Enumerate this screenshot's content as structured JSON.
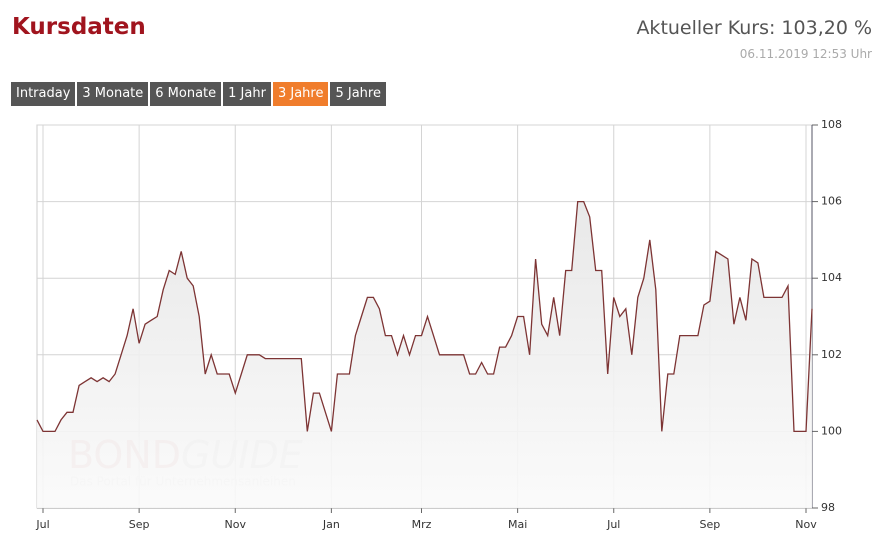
{
  "header": {
    "title": "Kursdaten",
    "price": "Aktueller Kurs: 103,20 %",
    "timestamp": "06.11.2019 12:53 Uhr"
  },
  "tabs": [
    "Intraday",
    "3 Monate",
    "6 Monate",
    "1 Jahr",
    "3 Jahre",
    "5 Jahre"
  ],
  "active_tab": 4,
  "watermark": {
    "brand_left": "BOND",
    "brand_right": "GUIDE",
    "tagline": "Das Portal für Unternehmensanleihen"
  },
  "chart_data": {
    "type": "area",
    "categories": [
      null,
      "Jul",
      null,
      null,
      null,
      null,
      null,
      null,
      null,
      null,
      null,
      null,
      null,
      null,
      null,
      null,
      null,
      "Sep",
      null,
      null,
      null,
      null,
      null,
      null,
      null,
      null,
      null,
      null,
      null,
      null,
      null,
      null,
      null,
      "Nov",
      null,
      null,
      null,
      null,
      null,
      null,
      null,
      null,
      null,
      null,
      null,
      null,
      null,
      null,
      null,
      "Jan",
      null,
      null,
      null,
      null,
      null,
      null,
      null,
      null,
      null,
      null,
      null,
      null,
      null,
      null,
      "Mrz",
      null,
      null,
      null,
      null,
      null,
      null,
      null,
      null,
      null,
      null,
      null,
      null,
      null,
      null,
      null,
      "Mai",
      null,
      null,
      null,
      null,
      null,
      null,
      null,
      null,
      null,
      null,
      null,
      null,
      null,
      null,
      null,
      "Jul",
      null,
      null,
      null,
      null,
      null,
      null,
      null,
      null,
      null,
      null,
      null,
      null,
      null,
      null,
      null,
      "Sep",
      null,
      null,
      null,
      null,
      null,
      null,
      null,
      null,
      null,
      null,
      null,
      null,
      null,
      null,
      null,
      "Nov",
      null
    ],
    "values": [
      100.3,
      100.0,
      100.0,
      100.0,
      100.3,
      100.5,
      100.5,
      101.2,
      101.3,
      101.4,
      101.3,
      101.4,
      101.3,
      101.5,
      102.0,
      102.5,
      103.2,
      102.3,
      102.8,
      102.9,
      103.0,
      103.7,
      104.2,
      104.1,
      104.7,
      104.0,
      103.8,
      103.0,
      101.5,
      102.0,
      101.5,
      101.5,
      101.5,
      101.0,
      101.5,
      102.0,
      102.0,
      102.0,
      101.9,
      101.9,
      101.9,
      101.9,
      101.9,
      101.9,
      101.9,
      100.0,
      101.0,
      101.0,
      100.5,
      100.0,
      101.5,
      101.5,
      101.5,
      102.5,
      103.0,
      103.5,
      103.5,
      103.2,
      102.5,
      102.5,
      102.0,
      102.5,
      102.0,
      102.5,
      102.5,
      103.0,
      102.5,
      102.0,
      102.0,
      102.0,
      102.0,
      102.0,
      101.5,
      101.5,
      101.8,
      101.5,
      101.5,
      102.2,
      102.2,
      102.5,
      103.0,
      103.0,
      102.0,
      104.5,
      102.8,
      102.5,
      103.5,
      102.5,
      104.2,
      104.2,
      106.0,
      106.0,
      105.6,
      104.2,
      104.2,
      101.5,
      103.5,
      103.0,
      103.2,
      102.0,
      103.5,
      104.0,
      105.0,
      103.7,
      100.0,
      101.5,
      101.5,
      102.5,
      102.5,
      102.5,
      102.5,
      103.3,
      103.4,
      104.7,
      104.6,
      104.5,
      102.8,
      103.5,
      102.9,
      104.5,
      104.4,
      103.5,
      103.5,
      103.5,
      103.5,
      103.8,
      100.0,
      100.0,
      100.0,
      103.2
    ],
    "color": "#7d3434",
    "ylim": [
      98,
      108
    ],
    "yticks": [
      98,
      100,
      102,
      104,
      106,
      108
    ],
    "grid": true
  }
}
